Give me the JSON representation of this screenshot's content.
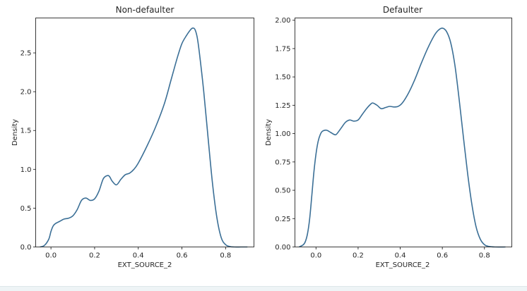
{
  "colors": {
    "line": "#3b6f96"
  },
  "chart_data": [
    {
      "type": "line",
      "title": "Non-defaulter",
      "xlabel": "EXT_SOURCE_2",
      "ylabel": "Density",
      "xlim": [
        -0.07,
        0.93
      ],
      "ylim": [
        0,
        2.95
      ],
      "xticks": [
        0.0,
        0.2,
        0.4,
        0.6,
        0.8
      ],
      "xtick_labels": [
        "0.0",
        "0.2",
        "0.4",
        "0.6",
        "0.8"
      ],
      "yticks": [
        0.0,
        0.5,
        1.0,
        1.5,
        2.0,
        2.5
      ],
      "ytick_labels": [
        "0.0",
        "0.5",
        "1.0",
        "1.5",
        "2.0",
        "2.5"
      ],
      "grid": false,
      "series": [
        {
          "x": [
            -0.05,
            -0.03,
            -0.01,
            0.0,
            0.01,
            0.02,
            0.04,
            0.06,
            0.08,
            0.1,
            0.12,
            0.14,
            0.16,
            0.18,
            0.2,
            0.22,
            0.24,
            0.26,
            0.27,
            0.28,
            0.3,
            0.32,
            0.34,
            0.36,
            0.38,
            0.4,
            0.44,
            0.48,
            0.52,
            0.55,
            0.58,
            0.6,
            0.62,
            0.64,
            0.65,
            0.66,
            0.67,
            0.68,
            0.7,
            0.72,
            0.74,
            0.76,
            0.78,
            0.8,
            0.82,
            0.84,
            0.87,
            0.9
          ],
          "values": [
            0.0,
            0.02,
            0.1,
            0.2,
            0.27,
            0.3,
            0.33,
            0.36,
            0.37,
            0.4,
            0.48,
            0.6,
            0.63,
            0.6,
            0.62,
            0.72,
            0.88,
            0.92,
            0.9,
            0.85,
            0.8,
            0.87,
            0.93,
            0.95,
            1.0,
            1.08,
            1.3,
            1.55,
            1.85,
            2.15,
            2.45,
            2.62,
            2.72,
            2.8,
            2.82,
            2.8,
            2.7,
            2.5,
            2.0,
            1.4,
            0.82,
            0.38,
            0.12,
            0.03,
            0.005,
            0.0,
            0.0,
            0.0
          ]
        }
      ]
    },
    {
      "type": "line",
      "title": "Defaulter",
      "xlabel": "EXT_SOURCE_2",
      "ylabel": "Density",
      "xlim": [
        -0.1,
        0.93
      ],
      "ylim": [
        0,
        2.02
      ],
      "xticks": [
        0.0,
        0.2,
        0.4,
        0.6,
        0.8
      ],
      "xtick_labels": [
        "0.0",
        "0.2",
        "0.4",
        "0.6",
        "0.8"
      ],
      "yticks": [
        0.0,
        0.25,
        0.5,
        0.75,
        1.0,
        1.25,
        1.5,
        1.75,
        2.0
      ],
      "ytick_labels": [
        "0.00",
        "0.25",
        "0.50",
        "0.75",
        "1.00",
        "1.25",
        "1.50",
        "1.75",
        "2.00"
      ],
      "grid": false,
      "series": [
        {
          "x": [
            -0.08,
            -0.06,
            -0.05,
            -0.04,
            -0.03,
            -0.02,
            -0.01,
            0.0,
            0.01,
            0.02,
            0.03,
            0.05,
            0.07,
            0.09,
            0.1,
            0.12,
            0.14,
            0.16,
            0.18,
            0.2,
            0.22,
            0.24,
            0.26,
            0.27,
            0.29,
            0.31,
            0.33,
            0.35,
            0.37,
            0.39,
            0.41,
            0.44,
            0.47,
            0.5,
            0.53,
            0.56,
            0.58,
            0.6,
            0.62,
            0.64,
            0.66,
            0.68,
            0.7,
            0.72,
            0.74,
            0.76,
            0.78,
            0.8,
            0.82,
            0.85,
            0.9
          ],
          "values": [
            0.0,
            0.02,
            0.05,
            0.12,
            0.25,
            0.45,
            0.66,
            0.82,
            0.93,
            0.99,
            1.02,
            1.03,
            1.01,
            0.99,
            1.0,
            1.05,
            1.1,
            1.12,
            1.11,
            1.12,
            1.17,
            1.22,
            1.26,
            1.27,
            1.25,
            1.22,
            1.23,
            1.24,
            1.235,
            1.24,
            1.27,
            1.36,
            1.48,
            1.62,
            1.75,
            1.86,
            1.91,
            1.93,
            1.9,
            1.8,
            1.6,
            1.3,
            0.97,
            0.65,
            0.38,
            0.18,
            0.07,
            0.02,
            0.005,
            0.0,
            0.0
          ]
        }
      ]
    }
  ]
}
